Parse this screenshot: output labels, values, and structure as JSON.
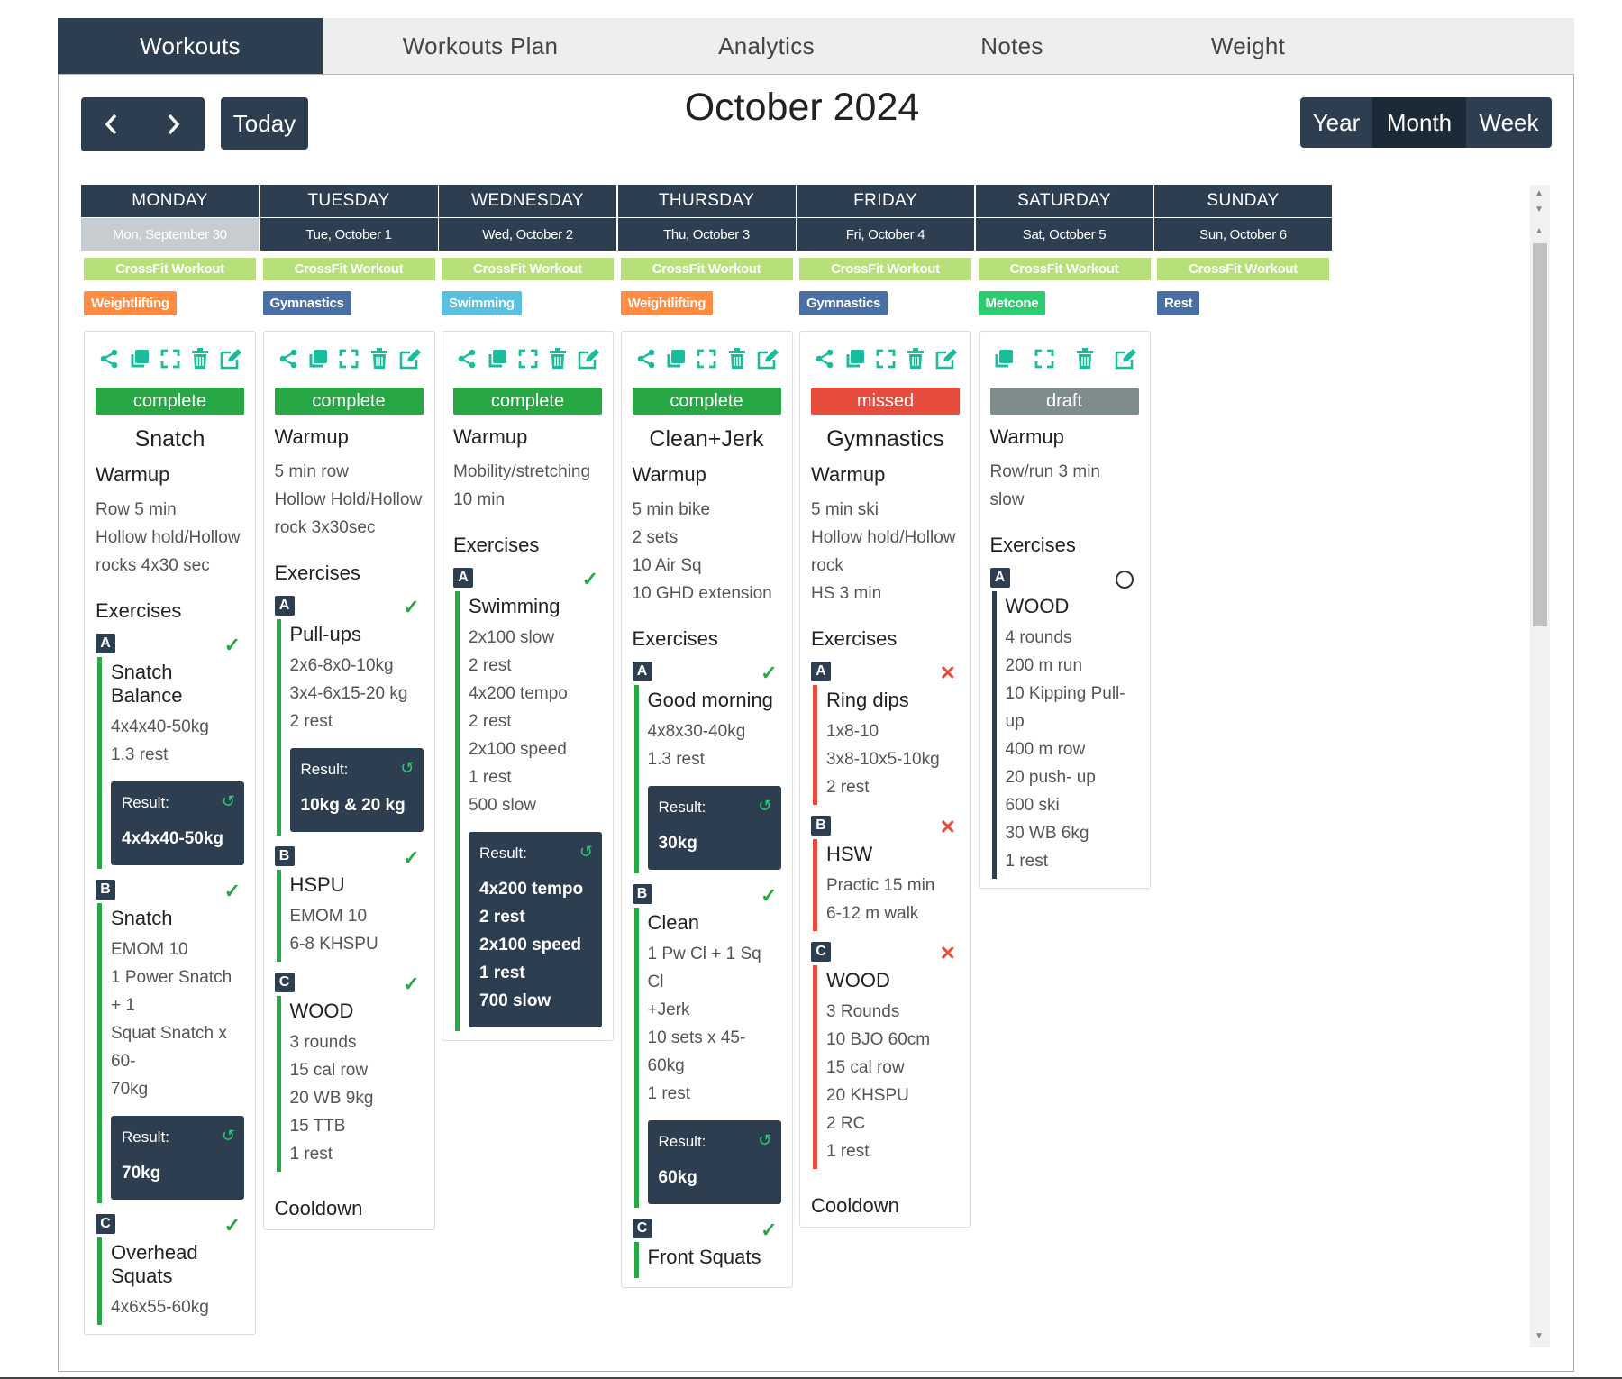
{
  "tabs": [
    "Workouts",
    "Workouts Plan",
    "Analytics",
    "Notes",
    "Weight"
  ],
  "toolbar": {
    "today": "Today",
    "title": "October 2024",
    "views": [
      "Year",
      "Month",
      "Week"
    ],
    "active_view": "Month"
  },
  "days": [
    {
      "name": "MONDAY",
      "date": "Mon, September 30",
      "crossfit": "CrossFit Workout",
      "tag": "Weightlifting",
      "tag_color": "#ff8c42",
      "card": {
        "status": "complete",
        "status_color": "#28a745",
        "title": "Snatch",
        "warmup_head": "Warmup",
        "warmup": [
          "Row 5 min",
          "Hollow hold/Hollow",
          "rocks 4x30 sec"
        ],
        "ex_head": "Exercises",
        "exercises": [
          {
            "badge": "A",
            "name": "Snatch Balance",
            "lines": [
              "4x4x40-50kg",
              "1.3 rest"
            ],
            "result": [
              "4x4x40-50kg"
            ]
          },
          {
            "badge": "B",
            "name": "Snatch",
            "lines": [
              "EMOM 10",
              "1 Power Snatch + 1",
              "Squat Snatch x 60-",
              "70kg"
            ],
            "result": [
              "70kg"
            ]
          },
          {
            "badge": "C",
            "name": "Overhead Squats",
            "lines": [
              "4x6x55-60kg"
            ]
          }
        ]
      }
    },
    {
      "name": "TUESDAY",
      "date": "Tue, October 1",
      "crossfit": "CrossFit Workout",
      "tag": "Gymnastics",
      "tag_color": "#4a6fa5",
      "card": {
        "status": "complete",
        "status_color": "#28a745",
        "warmup_head": "Warmup",
        "warmup": [
          "5 min row",
          "Hollow Hold/Hollow",
          "rock 3x30sec"
        ],
        "ex_head": "Exercises",
        "exercises": [
          {
            "badge": "A",
            "name": "Pull-ups",
            "lines": [
              "2x6-8x0-10kg",
              "3x4-6x15-20 kg",
              "2 rest"
            ],
            "result": [
              "10kg & 20 kg"
            ]
          },
          {
            "badge": "B",
            "name": "HSPU",
            "lines": [
              "EMOM 10",
              "6-8 KHSPU"
            ]
          },
          {
            "badge": "C",
            "name": "WOOD",
            "lines": [
              "3 rounds",
              "15 cal row",
              "20 WB 9kg",
              "15 TTB",
              "1 rest"
            ]
          }
        ],
        "cooldown": "Cooldown"
      }
    },
    {
      "name": "WEDNESDAY",
      "date": "Wed, October 2",
      "crossfit": "CrossFit Workout",
      "tag": "Swimming",
      "tag_color": "#5bc0de",
      "card": {
        "status": "complete",
        "status_color": "#28a745",
        "warmup_head": "Warmup",
        "warmup": [
          "Mobility/stretching",
          "10 min"
        ],
        "ex_head": "Exercises",
        "exercises": [
          {
            "badge": "A",
            "name": "Swimming",
            "lines": [
              "2x100 slow",
              "2 rest",
              "4x200 tempo",
              "2 rest",
              "2x100 speed",
              "1 rest",
              "500 slow"
            ],
            "result": [
              "4x200 tempo",
              "2 rest",
              "2x100 speed",
              "1 rest",
              "700 slow"
            ]
          }
        ]
      }
    },
    {
      "name": "THURSDAY",
      "date": "Thu, October 3",
      "crossfit": "CrossFit Workout",
      "tag": "Weightlifting",
      "tag_color": "#ff8c42",
      "card": {
        "status": "complete",
        "status_color": "#28a745",
        "title": "Clean+Jerk",
        "warmup_head": "Warmup",
        "warmup": [
          "5 min bike",
          "2 sets",
          "10 Air Sq",
          "10 GHD extension"
        ],
        "ex_head": "Exercises",
        "exercises": [
          {
            "badge": "A",
            "name": "Good morning",
            "lines": [
              "4x8x30-40kg",
              "1.3 rest"
            ],
            "result": [
              "30kg"
            ]
          },
          {
            "badge": "B",
            "name": "Clean",
            "lines": [
              "1 Pw Cl + 1 Sq Cl",
              "+Jerk",
              "10 sets x 45-60kg",
              "1 rest"
            ],
            "result": [
              "60kg"
            ]
          },
          {
            "badge": "C",
            "name": "Front Squats",
            "lines": []
          }
        ]
      }
    },
    {
      "name": "FRIDAY",
      "date": "Fri, October 4",
      "crossfit": "CrossFit Workout",
      "tag": "Gymnastics",
      "tag_color": "#4a6fa5",
      "card": {
        "status": "missed",
        "status_color": "#e74c3c",
        "title": "Gymnastics",
        "warmup_head": "Warmup",
        "warmup": [
          "5 min ski",
          "Hollow hold/Hollow",
          "rock",
          "HS 3 min"
        ],
        "ex_head": "Exercises",
        "exercises": [
          {
            "badge": "A",
            "name": "Ring dips",
            "lines": [
              "1x8-10",
              "3x8-10x5-10kg",
              "2 rest"
            ]
          },
          {
            "badge": "B",
            "name": "HSW",
            "lines": [
              "Practic 15 min",
              "6-12 m walk"
            ]
          },
          {
            "badge": "C",
            "name": "WOOD",
            "lines": [
              "3 Rounds",
              "10 BJO 60cm",
              "15 cal row",
              "20 KHSPU",
              "2 RC",
              "1 rest"
            ]
          }
        ],
        "cooldown": "Cooldown"
      }
    },
    {
      "name": "SATURDAY",
      "date": "Sat, October 5",
      "crossfit": "CrossFit Workout",
      "tag": "Metcone",
      "tag_color": "#2ecc71",
      "card": {
        "status": "draft",
        "status_color": "#7f8c8d",
        "warmup_head": "Warmup",
        "warmup": [
          "Row/run 3 min slow"
        ],
        "ex_head": "Exercises",
        "exercises": [
          {
            "badge": "A",
            "name": "WOOD",
            "lines": [
              "4 rounds",
              "200 m run",
              "10 Kipping Pull-up",
              "400 m row",
              "20 push- up",
              "600 ski",
              "30 WB 6kg",
              "1 rest"
            ]
          }
        ]
      }
    },
    {
      "name": "SUNDAY",
      "date": "Sun, October 6",
      "crossfit": "CrossFit Workout",
      "tag": "Rest",
      "tag_color": "#4a6fa5"
    }
  ],
  "result_label": "Result:",
  "icon_names": [
    "share-icon",
    "copy-icon",
    "expand-icon",
    "trash-icon",
    "edit-icon"
  ],
  "colors": {
    "primary": "#2c3e50",
    "accent": "#1abc9c",
    "crossfit": "#b8e07a"
  }
}
